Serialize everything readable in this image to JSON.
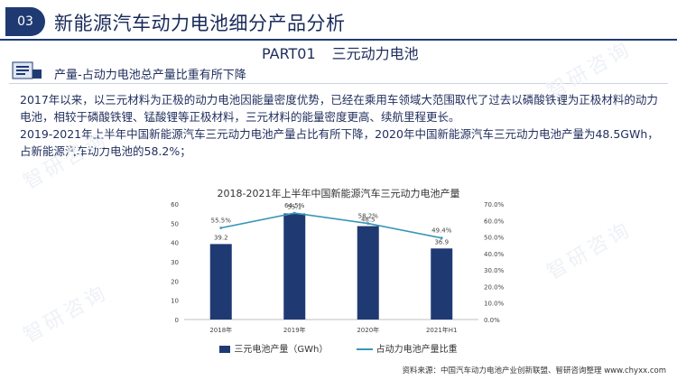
{
  "header": {
    "section_number": "03",
    "title": "新能源汽车动力电池细分产品分析",
    "part_label": "PART01",
    "part_title": "三元动力电池"
  },
  "subheading": "产量-占动力电池总产量比重有所下降",
  "paragraphs": [
    "2017年以来，以三元材料为正极的动力电池因能量密度优势，已经在乘用车领域大范围取代了过去以磷酸铁锂为正极材料的动力电池，相较于磷酸铁锂、锰酸锂等正极材料，三元材料的能量密度更高、续航里程更长。",
    "2019-2021年上半年中国新能源汽车三元动力电池产量占比有所下降，2020年中国新能源汽车三元动力电池产量为48.5GWh，占新能源汽车动力电池的58.2%；"
  ],
  "watermark_text": "智研咨询",
  "source": "资料来源：中国汽车动力电池产业创新联盟、智研咨询整理   www.chyxx.com",
  "colors": {
    "primary": "#1f3a73",
    "bar": "#1f3a73",
    "line": "#3a96b8"
  },
  "chart_data": {
    "type": "bar",
    "title": "2018-2021年上半年中国新能源汽车三元动力电池产量",
    "categories": [
      "2018年",
      "2019年",
      "2020年",
      "2021年H1"
    ],
    "series": [
      {
        "name": "三元电池产量（GWh）",
        "type": "bar",
        "axis": "left",
        "values": [
          39.2,
          55.1,
          48.5,
          36.9
        ],
        "labels": [
          "39.2",
          "55.1",
          "48.5",
          "36.9"
        ]
      },
      {
        "name": "占动力电池产量比重",
        "type": "line",
        "axis": "right",
        "values": [
          55.5,
          64.5,
          58.2,
          49.4
        ],
        "labels": [
          "55.5%",
          "64.5%",
          "58.2%",
          "49.4%"
        ]
      }
    ],
    "yleft": {
      "min": 0,
      "max": 60,
      "ticks": [
        "0",
        "10",
        "20",
        "30",
        "40",
        "50",
        "60"
      ]
    },
    "yright": {
      "min": 0,
      "max": 70,
      "ticks": [
        "0.0%",
        "10.0%",
        "20.0%",
        "30.0%",
        "40.0%",
        "50.0%",
        "60.0%",
        "70.0%"
      ]
    },
    "grid": false,
    "legend_position": "bottom"
  }
}
